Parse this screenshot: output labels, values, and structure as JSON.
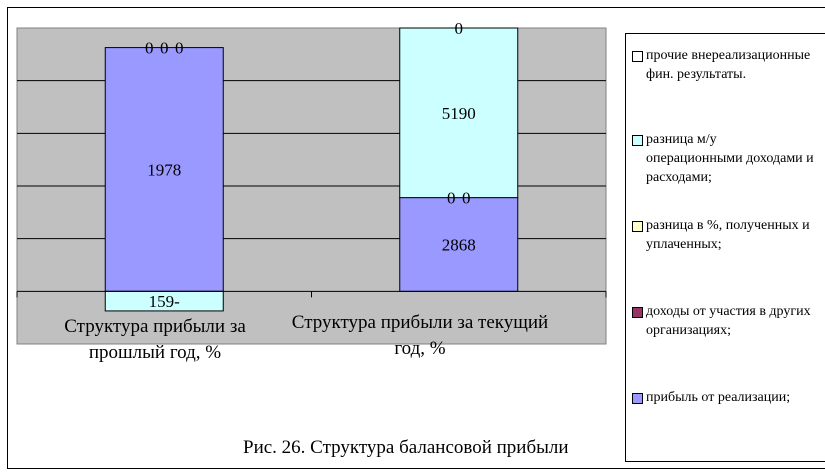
{
  "chart_data": {
    "type": "bar",
    "stacking": "percent",
    "categories": [
      "Структура прибыли за прошлый год, %",
      "Структура прибыли за текущий год, %"
    ],
    "ylim": [
      -20,
      100
    ],
    "grid": true,
    "legend_position": "right",
    "series": [
      {
        "name": "прибыль от реализации;",
        "values": [
          1978,
          2868
        ],
        "color": "#9999ff"
      },
      {
        "name": "доходы от участия в других организациях;",
        "values": [
          0,
          0
        ],
        "color": "#993366"
      },
      {
        "name": "разница в %, полученных и уплаченных;",
        "values": [
          0,
          0
        ],
        "color": "#ffffcc"
      },
      {
        "name": "разница м/у операционными доходами и расходами;",
        "values": [
          -159,
          5190
        ],
        "color": "#ccffff"
      },
      {
        "name": "прочие внереализационные фин. результаты.",
        "values": [
          0,
          0
        ],
        "color": "#ffffff"
      }
    ],
    "legend_order": [
      4,
      3,
      2,
      1,
      0
    ],
    "caption": "Рис. 26. Структура балансовой прибыли"
  },
  "colors": {
    "plot_background": "#c0c0c0"
  }
}
